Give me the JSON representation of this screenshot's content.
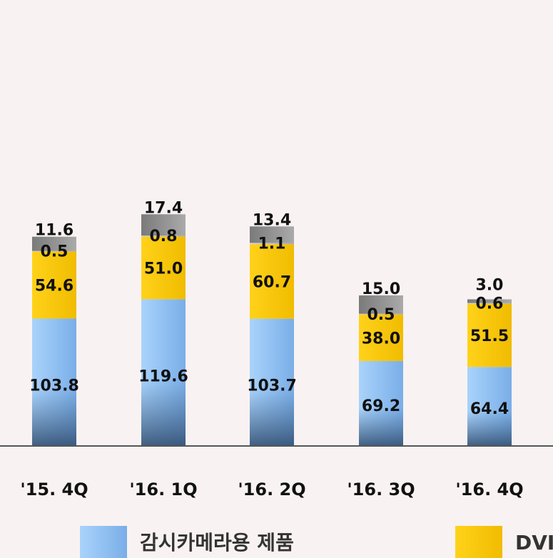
{
  "chart_data": {
    "type": "bar",
    "stacked": true,
    "categories": [
      "'15. 4Q",
      "'16. 1Q",
      "'16. 2Q",
      "'16. 3Q",
      "'16. 4Q"
    ],
    "series": [
      {
        "name": "감시카메라용 제품",
        "values": [
          103.8,
          119.6,
          103.7,
          69.2,
          64.4
        ],
        "color": "#8ec3f6"
      },
      {
        "name": "DVI",
        "values": [
          54.6,
          51.0,
          60.7,
          38.0,
          51.5
        ],
        "color": "#f5c400"
      },
      {
        "values": [
          0.5,
          0.8,
          1.1,
          0.5,
          0.6
        ],
        "color": "#bfbfbf"
      },
      {
        "values": [
          11.6,
          17.4,
          13.4,
          15.0,
          3.0
        ],
        "color": "#8c8c8c"
      }
    ],
    "xlabel": "",
    "ylabel": "",
    "grid": false,
    "legend": "bottom"
  }
}
